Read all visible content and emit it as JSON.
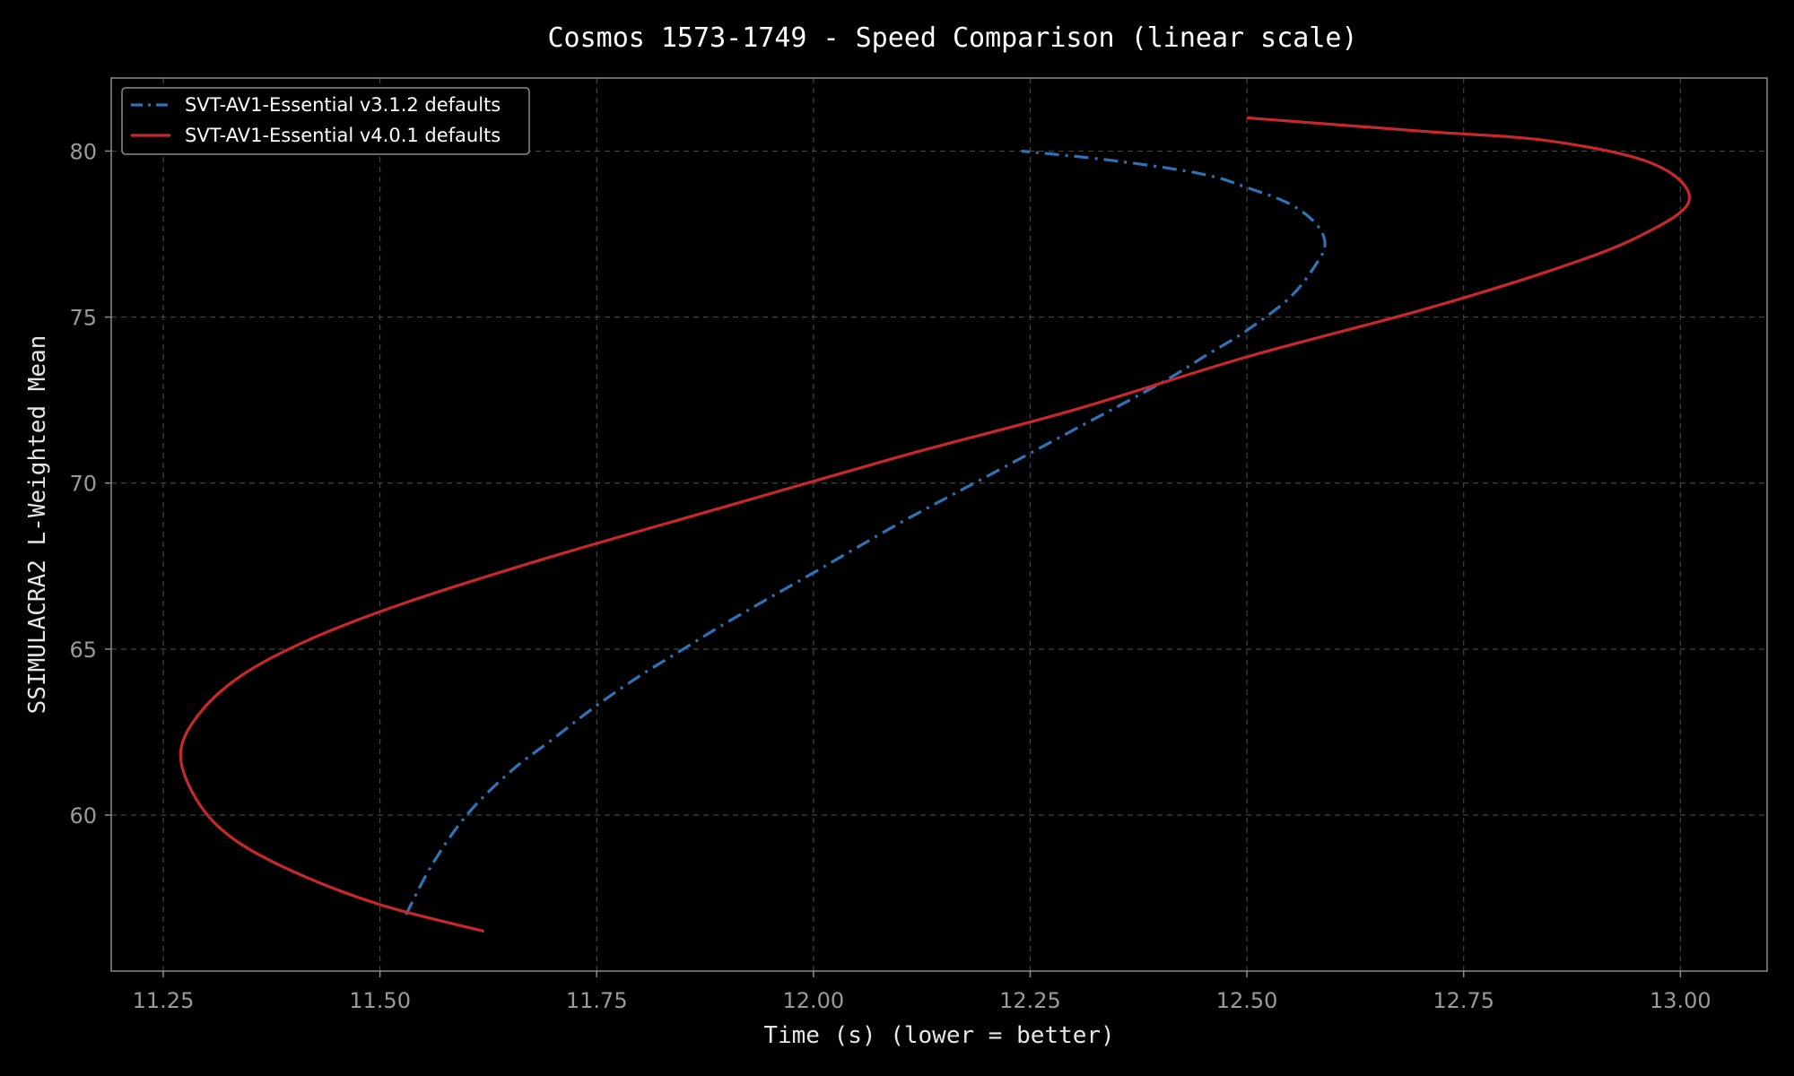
{
  "chart_data": {
    "type": "line",
    "title": "Cosmos 1573-1749 - Speed Comparison (linear scale)",
    "xlabel": "Time (s) (lower = better)",
    "ylabel": "SSIMULACRA2 L-Weighted Mean",
    "xlim": [
      11.19,
      13.1
    ],
    "ylim": [
      55.3,
      82.2
    ],
    "xticks": [
      "11.25",
      "11.50",
      "11.75",
      "12.00",
      "12.25",
      "12.50",
      "12.75",
      "13.00"
    ],
    "yticks": [
      "60",
      "65",
      "70",
      "75",
      "80"
    ],
    "grid": true,
    "legend_position": "top-left",
    "series": [
      {
        "name": "SVT-AV1-Essential v3.1.2 defaults",
        "color": "#2f72b8",
        "style": "dashdot",
        "points": [
          [
            11.53,
            57.0
          ],
          [
            11.56,
            58.5
          ],
          [
            11.6,
            60.0
          ],
          [
            11.65,
            61.3
          ],
          [
            11.7,
            62.3
          ],
          [
            11.75,
            63.3
          ],
          [
            11.8,
            64.2
          ],
          [
            11.85,
            65.0
          ],
          [
            11.9,
            65.8
          ],
          [
            12.0,
            67.3
          ],
          [
            12.1,
            68.8
          ],
          [
            12.2,
            70.2
          ],
          [
            12.3,
            71.6
          ],
          [
            12.4,
            73.0
          ],
          [
            12.45,
            73.8
          ],
          [
            12.5,
            74.6
          ],
          [
            12.55,
            75.6
          ],
          [
            12.58,
            76.6
          ],
          [
            12.59,
            77.2
          ],
          [
            12.58,
            77.8
          ],
          [
            12.55,
            78.4
          ],
          [
            12.5,
            78.9
          ],
          [
            12.45,
            79.3
          ],
          [
            12.35,
            79.7
          ],
          [
            12.24,
            80.0
          ]
        ]
      },
      {
        "name": "SVT-AV1-Essential v4.0.1 defaults",
        "color": "#c8282c",
        "style": "solid",
        "points": [
          [
            11.62,
            56.5
          ],
          [
            11.5,
            57.3
          ],
          [
            11.4,
            58.3
          ],
          [
            11.33,
            59.3
          ],
          [
            11.29,
            60.4
          ],
          [
            11.27,
            61.8
          ],
          [
            11.29,
            63.0
          ],
          [
            11.34,
            64.2
          ],
          [
            11.42,
            65.3
          ],
          [
            11.53,
            66.4
          ],
          [
            11.7,
            67.8
          ],
          [
            11.9,
            69.3
          ],
          [
            12.1,
            70.8
          ],
          [
            12.3,
            72.2
          ],
          [
            12.5,
            73.8
          ],
          [
            12.7,
            75.2
          ],
          [
            12.85,
            76.4
          ],
          [
            12.95,
            77.4
          ],
          [
            13.01,
            78.5
          ],
          [
            12.97,
            79.6
          ],
          [
            12.85,
            80.3
          ],
          [
            12.7,
            80.6
          ],
          [
            12.5,
            81.0
          ]
        ]
      }
    ]
  }
}
